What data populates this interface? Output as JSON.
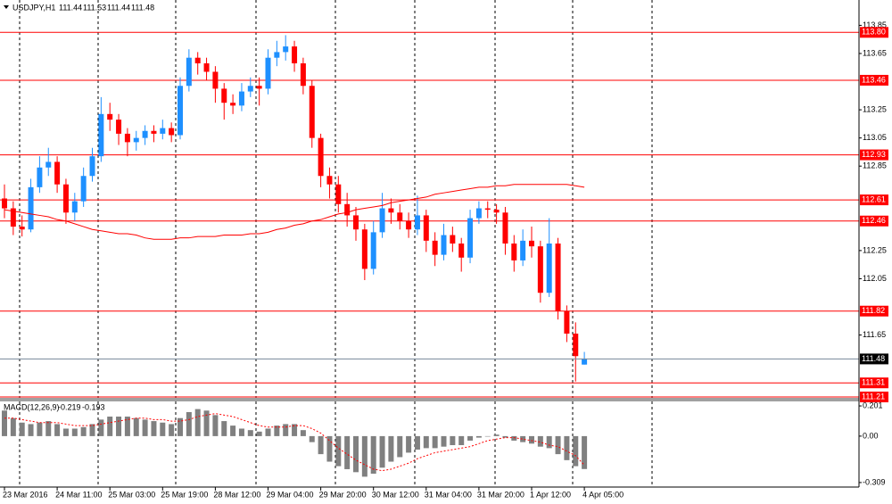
{
  "chart_data": [
    {
      "type": "candlestick",
      "title": "USDJPY,H1",
      "categories": [
        "23 Mar 2016",
        null,
        null,
        null,
        null,
        null,
        "24 Mar 11:00",
        null,
        null,
        null,
        null,
        null,
        "25 Mar 03:00",
        null,
        null,
        null,
        null,
        null,
        "25 Mar 19:00",
        null,
        null,
        null,
        null,
        null,
        "28 Mar 12:00",
        null,
        null,
        null,
        null,
        null,
        "29 Mar 04:00",
        null,
        null,
        null,
        null,
        null,
        "29 Mar 20:00",
        null,
        null,
        null,
        null,
        null,
        "30 Mar 12:00",
        null,
        null,
        null,
        null,
        null,
        "31 Mar 04:00",
        null,
        null,
        null,
        null,
        null,
        "31 Mar 20:00",
        null,
        null,
        null,
        null,
        null,
        "1 Apr 12:00",
        null,
        null,
        null,
        null,
        null,
        "4 Apr 05:00"
      ],
      "open": [
        112.62,
        112.55,
        112.42,
        112.4,
        112.7,
        112.84,
        112.88,
        112.72,
        112.52,
        112.6,
        112.78,
        112.92,
        113.22,
        113.18,
        113.08,
        113.02,
        113.05,
        113.1,
        113.08,
        113.12,
        113.07,
        113.42,
        113.62,
        113.58,
        113.52,
        113.4,
        113.3,
        113.28,
        113.38,
        113.42,
        113.4,
        113.62,
        113.66,
        113.7,
        113.58,
        113.42,
        113.05,
        112.78,
        112.72,
        112.58,
        112.5,
        112.4,
        112.12,
        112.38,
        112.55,
        112.52,
        112.46,
        112.4,
        112.5,
        112.32,
        112.22,
        112.36,
        112.3,
        112.2,
        112.48,
        112.55,
        112.54,
        112.52,
        112.3,
        112.18,
        112.32,
        112.28,
        111.95,
        112.3,
        111.82,
        111.66,
        111.44
      ],
      "high": [
        112.72,
        112.6,
        112.5,
        112.76,
        112.92,
        112.98,
        112.92,
        112.76,
        112.66,
        112.84,
        112.98,
        113.34,
        113.3,
        113.22,
        113.12,
        113.1,
        113.14,
        113.14,
        113.18,
        113.16,
        113.48,
        113.68,
        113.66,
        113.62,
        113.56,
        113.44,
        113.36,
        113.44,
        113.48,
        113.48,
        113.68,
        113.74,
        113.78,
        113.74,
        113.62,
        113.46,
        113.08,
        112.84,
        112.78,
        112.66,
        112.56,
        112.44,
        112.46,
        112.66,
        112.62,
        112.58,
        112.52,
        112.64,
        112.54,
        112.38,
        112.44,
        112.42,
        112.34,
        112.54,
        112.6,
        112.6,
        112.58,
        112.56,
        112.36,
        112.4,
        112.42,
        112.32,
        112.48,
        112.34,
        111.86,
        111.74,
        111.53
      ],
      "low": [
        112.48,
        112.36,
        112.35,
        112.38,
        112.66,
        112.78,
        112.66,
        112.44,
        112.46,
        112.56,
        112.74,
        112.88,
        113.1,
        113.0,
        112.92,
        112.96,
        113.0,
        113.02,
        113.04,
        113.02,
        113.04,
        113.38,
        113.5,
        113.46,
        113.3,
        113.18,
        113.22,
        113.24,
        113.34,
        113.28,
        113.36,
        113.56,
        113.6,
        113.52,
        113.36,
        112.98,
        112.7,
        112.62,
        112.52,
        112.42,
        112.32,
        112.04,
        112.08,
        112.34,
        112.44,
        112.4,
        112.34,
        112.36,
        112.24,
        112.14,
        112.18,
        112.24,
        112.1,
        112.16,
        112.44,
        112.48,
        112.44,
        112.22,
        112.1,
        112.14,
        112.2,
        111.88,
        111.92,
        111.76,
        111.6,
        111.32,
        111.44
      ],
      "close": [
        112.55,
        112.42,
        112.4,
        112.7,
        112.84,
        112.88,
        112.72,
        112.52,
        112.6,
        112.78,
        112.92,
        113.22,
        113.18,
        113.08,
        113.02,
        113.05,
        113.1,
        113.08,
        113.12,
        113.07,
        113.42,
        113.62,
        113.58,
        113.52,
        113.4,
        113.3,
        113.28,
        113.38,
        113.42,
        113.4,
        113.62,
        113.66,
        113.7,
        113.58,
        113.42,
        113.05,
        112.78,
        112.72,
        112.58,
        112.5,
        112.4,
        112.12,
        112.38,
        112.55,
        112.52,
        112.46,
        112.4,
        112.5,
        112.32,
        112.22,
        112.36,
        112.3,
        112.2,
        112.48,
        112.55,
        112.54,
        112.52,
        112.3,
        112.18,
        112.32,
        112.28,
        111.95,
        112.3,
        111.82,
        111.66,
        111.5,
        111.48
      ],
      "up_color": "#1e90ff",
      "down_color": "#ff0000",
      "overlay": {
        "color": "#ff0000",
        "values": [
          112.54,
          112.53,
          112.52,
          112.51,
          112.5,
          112.49,
          112.47,
          112.46,
          112.44,
          112.42,
          112.4,
          112.39,
          112.38,
          112.37,
          112.37,
          112.36,
          112.34,
          112.33,
          112.33,
          112.33,
          112.34,
          112.34,
          112.35,
          112.35,
          112.35,
          112.36,
          112.36,
          112.36,
          112.37,
          112.37,
          112.38,
          112.4,
          112.41,
          112.43,
          112.44,
          112.46,
          112.47,
          112.49,
          112.51,
          112.52,
          112.54,
          112.55,
          112.56,
          112.57,
          112.59,
          112.6,
          112.61,
          112.62,
          112.63,
          112.65,
          112.66,
          112.67,
          112.68,
          112.69,
          112.7,
          112.7,
          112.71,
          112.71,
          112.72,
          112.72,
          112.72,
          112.72,
          112.72,
          112.72,
          112.72,
          112.71,
          112.7
        ]
      },
      "levels": [
        {
          "value": 113.8,
          "label": "113.80"
        },
        113.46,
        112.93,
        112.61,
        112.46,
        111.82,
        111.31,
        111.21
      ],
      "level_color": "#ff0000",
      "last_price_color": "#778899",
      "ylim": [
        111.21,
        114.03
      ],
      "yticks": [
        113.85,
        113.65,
        113.25,
        113.05,
        112.85,
        112.25,
        112.05,
        111.65
      ]
    },
    {
      "type": "macd",
      "title": "MACD(12,26,9)",
      "histogram": {
        "color": "#808080",
        "values": [
          0.17,
          0.12,
          0.09,
          0.08,
          0.09,
          0.1,
          0.08,
          0.05,
          0.05,
          0.06,
          0.08,
          0.11,
          0.13,
          0.13,
          0.13,
          0.12,
          0.11,
          0.1,
          0.09,
          0.08,
          0.12,
          0.16,
          0.18,
          0.17,
          0.14,
          0.1,
          0.07,
          0.05,
          0.04,
          0.03,
          0.05,
          0.07,
          0.08,
          0.08,
          0.04,
          -0.04,
          -0.12,
          -0.17,
          -0.2,
          -0.22,
          -0.24,
          -0.27,
          -0.25,
          -0.21,
          -0.17,
          -0.14,
          -0.11,
          -0.09,
          -0.08,
          -0.08,
          -0.07,
          -0.06,
          -0.06,
          -0.03,
          -0.01,
          0,
          0.01,
          -0.01,
          -0.03,
          -0.04,
          -0.05,
          -0.07,
          -0.08,
          -0.12,
          -0.16,
          -0.2,
          -0.219
        ]
      },
      "signal": {
        "color": "#ff0000",
        "values": [
          0.12,
          0.12,
          0.11,
          0.1,
          0.09,
          0.09,
          0.09,
          0.08,
          0.07,
          0.07,
          0.07,
          0.08,
          0.09,
          0.1,
          0.11,
          0.12,
          0.12,
          0.11,
          0.11,
          0.1,
          0.1,
          0.11,
          0.13,
          0.14,
          0.15,
          0.14,
          0.13,
          0.11,
          0.09,
          0.07,
          0.06,
          0.06,
          0.06,
          0.07,
          0.07,
          0.05,
          0.02,
          -0.03,
          -0.08,
          -0.12,
          -0.16,
          -0.19,
          -0.22,
          -0.23,
          -0.22,
          -0.2,
          -0.18,
          -0.15,
          -0.13,
          -0.11,
          -0.1,
          -0.09,
          -0.08,
          -0.07,
          -0.05,
          -0.03,
          -0.02,
          -0.01,
          -0.01,
          -0.02,
          -0.03,
          -0.04,
          -0.06,
          -0.07,
          -0.1,
          -0.13,
          -0.193
        ]
      },
      "ylim": [
        -0.339,
        0.231
      ],
      "yticks": [
        0.201,
        {
          "value": 0,
          "label": "0.00"
        },
        -0.309
      ]
    }
  ]
}
